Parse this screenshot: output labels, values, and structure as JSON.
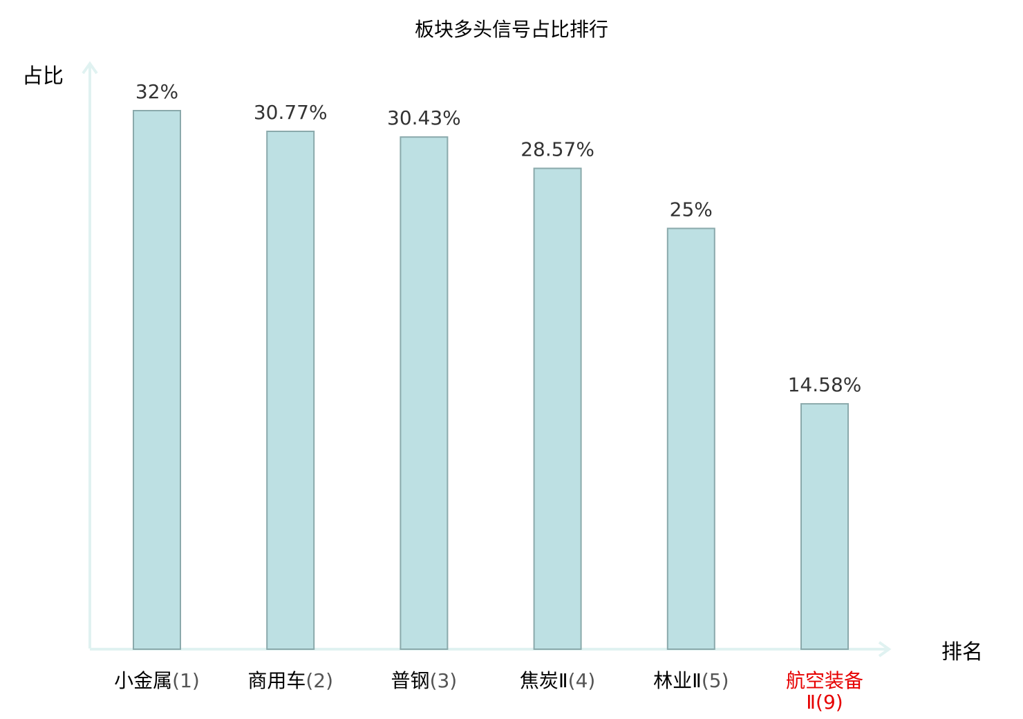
{
  "chart_data": {
    "type": "bar",
    "title": "板块多头信号占比排行",
    "xlabel": "排名",
    "ylabel": "占比",
    "categories": [
      {
        "name": "小金属",
        "rank": "(1)"
      },
      {
        "name": "商用车",
        "rank": "(2)"
      },
      {
        "name": "普钢",
        "rank": "(3)"
      },
      {
        "name": "焦炭Ⅱ",
        "rank": "(4)"
      },
      {
        "name": "林业Ⅱ",
        "rank": "(5)"
      },
      {
        "name": "航空装备",
        "rank": "Ⅱ(9)",
        "highlight": true
      }
    ],
    "values": [
      32,
      30.77,
      30.43,
      28.57,
      25,
      14.58
    ],
    "value_labels": [
      "32%",
      "30.77%",
      "30.43%",
      "28.57%",
      "25%",
      "14.58%"
    ],
    "ylim": [
      0,
      35
    ],
    "grid": false,
    "legend": "none",
    "colors": {
      "bar_fill": "#bde0e3",
      "bar_stroke": "#8aa9ab",
      "axis": "#e0f2f1",
      "highlight_label": "#e60000"
    }
  }
}
